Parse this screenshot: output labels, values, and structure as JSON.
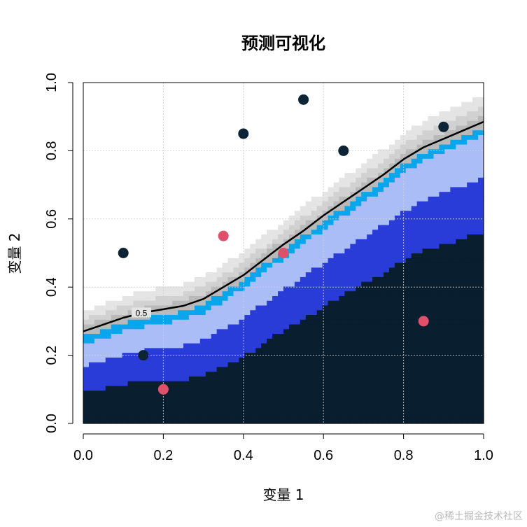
{
  "chart_data": {
    "type": "contour",
    "title": "预测可视化",
    "xlabel": "变量 1",
    "ylabel": "变量 2",
    "xlim": [
      0,
      1
    ],
    "ylim": [
      0,
      1
    ],
    "x_ticks": [
      "0.0",
      "0.2",
      "0.4",
      "0.6",
      "0.8",
      "1.0"
    ],
    "y_ticks": [
      "0.0",
      "0.2",
      "0.4",
      "0.6",
      "0.8",
      "1.0"
    ],
    "grid": true,
    "contour_label": "0.5",
    "decision_boundary": [
      [
        0,
        0.27
      ],
      [
        0.05,
        0.29
      ],
      [
        0.1,
        0.31
      ],
      [
        0.15,
        0.325
      ],
      [
        0.2,
        0.335
      ],
      [
        0.25,
        0.345
      ],
      [
        0.3,
        0.365
      ],
      [
        0.35,
        0.4
      ],
      [
        0.4,
        0.435
      ],
      [
        0.45,
        0.48
      ],
      [
        0.5,
        0.525
      ],
      [
        0.55,
        0.565
      ],
      [
        0.6,
        0.61
      ],
      [
        0.65,
        0.65
      ],
      [
        0.7,
        0.69
      ],
      [
        0.75,
        0.73
      ],
      [
        0.8,
        0.775
      ],
      [
        0.85,
        0.81
      ],
      [
        0.9,
        0.835
      ],
      [
        0.95,
        0.86
      ],
      [
        1.0,
        0.885
      ]
    ],
    "band_colors": [
      "#091e2e",
      "#2a3cd8",
      "#abbdf7",
      "#0aa6ec",
      "#b9b9b9",
      "#d1d1d1",
      "#e4e4e4",
      "#ffffff"
    ],
    "series": [
      {
        "class": "0",
        "color": "#0d2436",
        "points": [
          [
            0.1,
            0.5
          ],
          [
            0.15,
            0.2
          ],
          [
            0.4,
            0.85
          ],
          [
            0.55,
            0.95
          ],
          [
            0.65,
            0.8
          ],
          [
            0.9,
            0.87
          ]
        ]
      },
      {
        "class": "1",
        "color": "#e0506a",
        "points": [
          [
            0.2,
            0.1
          ],
          [
            0.35,
            0.55
          ],
          [
            0.5,
            0.5
          ],
          [
            0.85,
            0.3
          ]
        ]
      }
    ]
  },
  "watermark": "@稀土掘金技术社区"
}
